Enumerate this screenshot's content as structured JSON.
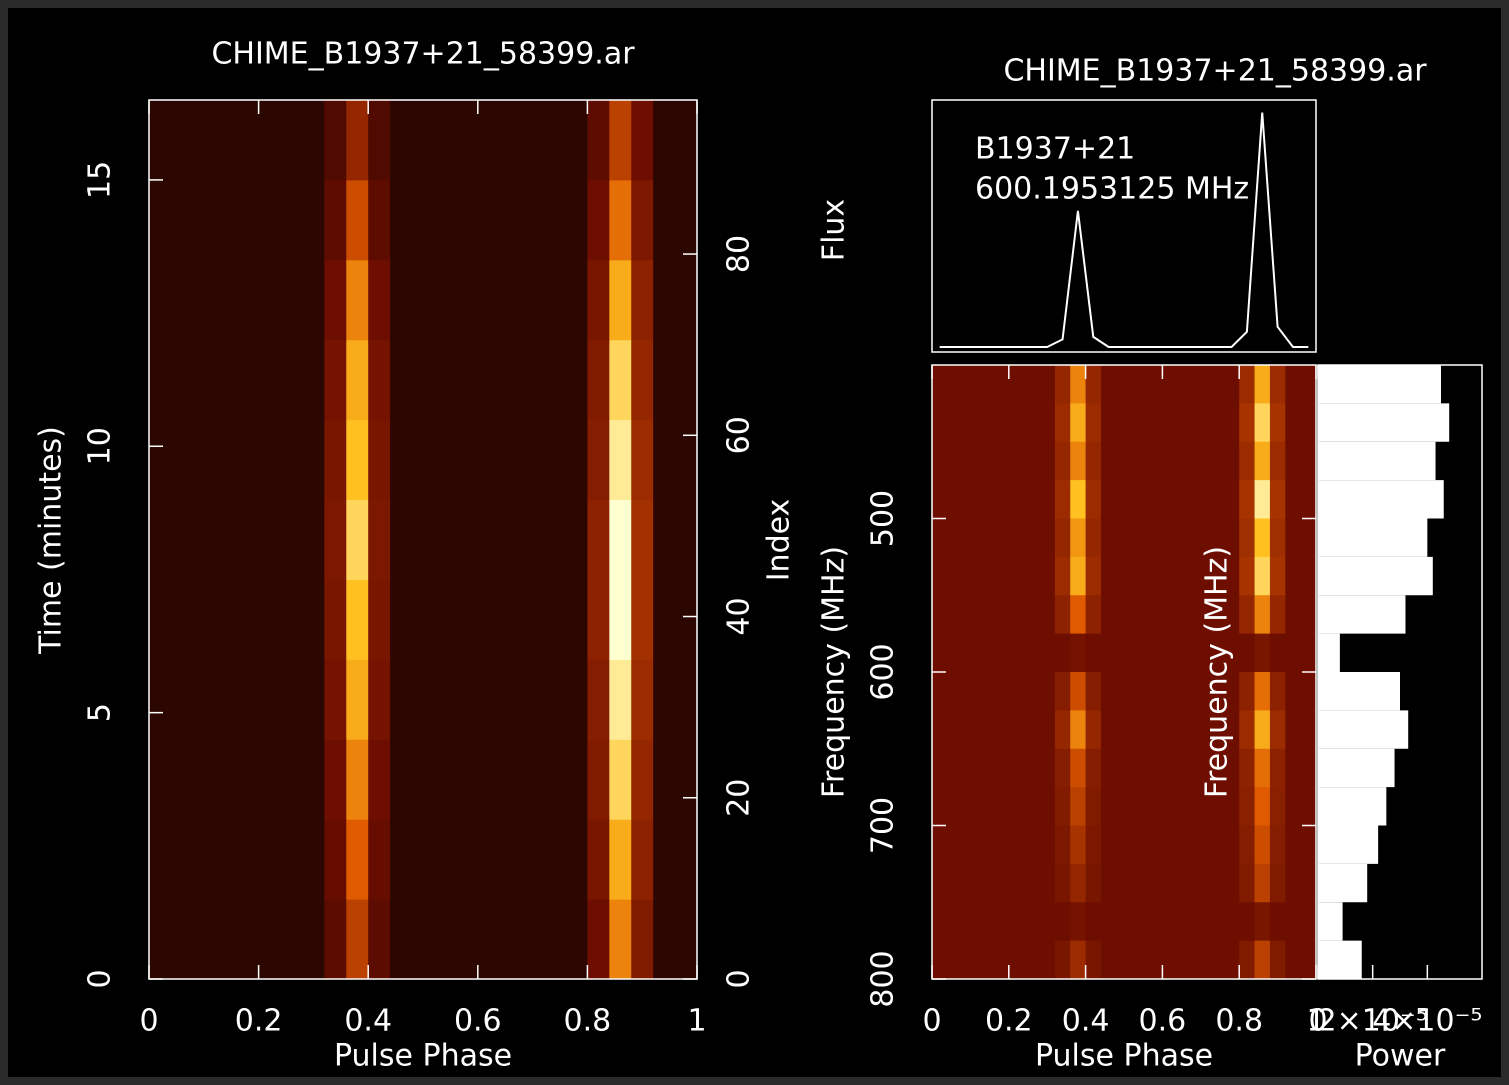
{
  "chart_data": [
    {
      "type": "heatmap",
      "title": "CHIME_B1937+21_58399.ar",
      "x_label": "Pulse Phase",
      "y_label": "Time (minutes)",
      "y2_label": "Index",
      "colormap": "heat",
      "xlim": [
        0,
        1
      ],
      "xticks": [
        0,
        0.2,
        0.4,
        0.6,
        0.8,
        1
      ],
      "ylim": [
        0,
        16.5
      ],
      "yticks": [
        0,
        5,
        10,
        15
      ],
      "y2lim": [
        0,
        97
      ],
      "y2ticks": [
        0,
        20,
        40,
        60,
        80
      ],
      "x": [
        0.02,
        0.06,
        0.1,
        0.14,
        0.18,
        0.22,
        0.26,
        0.3,
        0.34,
        0.38,
        0.42,
        0.46,
        0.5,
        0.54,
        0.58,
        0.62,
        0.66,
        0.7,
        0.74,
        0.78,
        0.82,
        0.86,
        0.9,
        0.94,
        0.98
      ],
      "y": [
        0.75,
        2.25,
        3.75,
        5.25,
        6.75,
        8.25,
        9.75,
        11.25,
        12.75,
        14.25,
        15.75
      ],
      "z": [
        [
          0.12,
          0.12,
          0.12,
          0.12,
          0.12,
          0.12,
          0.12,
          0.12,
          0.25,
          0.5,
          0.25,
          0.12,
          0.12,
          0.12,
          0.12,
          0.12,
          0.12,
          0.12,
          0.12,
          0.12,
          0.3,
          0.7,
          0.35,
          0.12,
          0.12
        ],
        [
          0.12,
          0.12,
          0.12,
          0.12,
          0.12,
          0.12,
          0.12,
          0.12,
          0.28,
          0.6,
          0.28,
          0.12,
          0.12,
          0.12,
          0.12,
          0.12,
          0.12,
          0.12,
          0.12,
          0.12,
          0.33,
          0.8,
          0.38,
          0.12,
          0.12
        ],
        [
          0.12,
          0.12,
          0.12,
          0.12,
          0.12,
          0.12,
          0.12,
          0.12,
          0.3,
          0.7,
          0.3,
          0.12,
          0.12,
          0.12,
          0.12,
          0.12,
          0.12,
          0.12,
          0.12,
          0.12,
          0.35,
          0.9,
          0.4,
          0.12,
          0.12
        ],
        [
          0.12,
          0.12,
          0.12,
          0.12,
          0.12,
          0.12,
          0.12,
          0.12,
          0.32,
          0.8,
          0.32,
          0.12,
          0.12,
          0.12,
          0.12,
          0.12,
          0.12,
          0.12,
          0.12,
          0.12,
          0.36,
          0.95,
          0.42,
          0.12,
          0.12
        ],
        [
          0.12,
          0.12,
          0.12,
          0.12,
          0.12,
          0.12,
          0.12,
          0.12,
          0.33,
          0.85,
          0.33,
          0.12,
          0.12,
          0.12,
          0.12,
          0.12,
          0.12,
          0.12,
          0.12,
          0.12,
          0.38,
          1,
          0.44,
          0.12,
          0.12
        ],
        [
          0.12,
          0.12,
          0.12,
          0.12,
          0.12,
          0.12,
          0.12,
          0.12,
          0.34,
          0.9,
          0.34,
          0.12,
          0.12,
          0.12,
          0.12,
          0.12,
          0.12,
          0.12,
          0.12,
          0.12,
          0.38,
          1,
          0.44,
          0.12,
          0.12
        ],
        [
          0.12,
          0.12,
          0.12,
          0.12,
          0.12,
          0.12,
          0.12,
          0.12,
          0.33,
          0.85,
          0.33,
          0.12,
          0.12,
          0.12,
          0.12,
          0.12,
          0.12,
          0.12,
          0.12,
          0.12,
          0.36,
          0.95,
          0.42,
          0.12,
          0.12
        ],
        [
          0.12,
          0.12,
          0.12,
          0.12,
          0.12,
          0.12,
          0.12,
          0.12,
          0.32,
          0.8,
          0.32,
          0.12,
          0.12,
          0.12,
          0.12,
          0.12,
          0.12,
          0.12,
          0.12,
          0.12,
          0.35,
          0.9,
          0.4,
          0.12,
          0.12
        ],
        [
          0.12,
          0.12,
          0.12,
          0.12,
          0.12,
          0.12,
          0.12,
          0.12,
          0.3,
          0.7,
          0.3,
          0.12,
          0.12,
          0.12,
          0.12,
          0.12,
          0.12,
          0.12,
          0.12,
          0.12,
          0.33,
          0.8,
          0.38,
          0.12,
          0.12
        ],
        [
          0.12,
          0.12,
          0.12,
          0.12,
          0.12,
          0.12,
          0.12,
          0.12,
          0.26,
          0.55,
          0.26,
          0.12,
          0.12,
          0.12,
          0.12,
          0.12,
          0.12,
          0.12,
          0.12,
          0.12,
          0.3,
          0.65,
          0.34,
          0.12,
          0.12
        ],
        [
          0.12,
          0.12,
          0.12,
          0.12,
          0.12,
          0.12,
          0.12,
          0.12,
          0.22,
          0.4,
          0.22,
          0.12,
          0.12,
          0.12,
          0.12,
          0.12,
          0.12,
          0.12,
          0.12,
          0.12,
          0.26,
          0.5,
          0.3,
          0.12,
          0.12
        ]
      ]
    },
    {
      "type": "line",
      "title": "CHIME_B1937+21_58399.ar",
      "y_label": "Flux",
      "annotations": [
        "B1937+21",
        "600.1953125 MHz"
      ],
      "color": "#ffffff",
      "xlim": [
        0,
        1
      ],
      "ylim": [
        0,
        1
      ],
      "x": [
        0.02,
        0.06,
        0.1,
        0.14,
        0.18,
        0.22,
        0.26,
        0.3,
        0.34,
        0.38,
        0.42,
        0.46,
        0.5,
        0.54,
        0.58,
        0.62,
        0.66,
        0.7,
        0.74,
        0.78,
        0.82,
        0.86,
        0.9,
        0.94,
        0.98
      ],
      "values": [
        0.02,
        0.02,
        0.02,
        0.02,
        0.02,
        0.02,
        0.02,
        0.02,
        0.05,
        0.56,
        0.06,
        0.02,
        0.02,
        0.02,
        0.02,
        0.02,
        0.02,
        0.02,
        0.02,
        0.02,
        0.08,
        0.95,
        0.1,
        0.02,
        0.02
      ]
    },
    {
      "type": "heatmap",
      "x_label": "Pulse Phase",
      "y_label": "Frequency (MHz)",
      "y2_label": "Frequency (MHz)",
      "colormap": "heat",
      "xlim": [
        0,
        1
      ],
      "xticks": [
        0,
        0.2,
        0.4,
        0.6,
        0.8,
        1
      ],
      "ylim": [
        800,
        400
      ],
      "yticks": [
        500,
        600,
        700,
        800
      ],
      "x": [
        0.02,
        0.06,
        0.1,
        0.14,
        0.18,
        0.22,
        0.26,
        0.3,
        0.34,
        0.38,
        0.42,
        0.46,
        0.5,
        0.54,
        0.58,
        0.62,
        0.66,
        0.7,
        0.74,
        0.78,
        0.82,
        0.86,
        0.9,
        0.94,
        0.98
      ],
      "y": [
        412.5,
        437.5,
        462.5,
        487.5,
        512.5,
        537.5,
        562.5,
        587.5,
        612.5,
        637.5,
        662.5,
        687.5,
        712.5,
        737.5,
        762.5,
        787.5
      ],
      "z": [
        [
          0.3,
          0.3,
          0.3,
          0.3,
          0.3,
          0.3,
          0.3,
          0.3,
          0.4,
          0.7,
          0.4,
          0.3,
          0.3,
          0.3,
          0.3,
          0.3,
          0.3,
          0.3,
          0.3,
          0.3,
          0.42,
          0.8,
          0.42,
          0.3,
          0.3
        ],
        [
          0.3,
          0.3,
          0.3,
          0.3,
          0.3,
          0.3,
          0.3,
          0.3,
          0.42,
          0.8,
          0.42,
          0.3,
          0.3,
          0.3,
          0.3,
          0.3,
          0.3,
          0.3,
          0.3,
          0.3,
          0.45,
          0.9,
          0.45,
          0.3,
          0.3
        ],
        [
          0.3,
          0.3,
          0.3,
          0.3,
          0.3,
          0.3,
          0.3,
          0.3,
          0.4,
          0.7,
          0.4,
          0.3,
          0.3,
          0.3,
          0.3,
          0.3,
          0.3,
          0.3,
          0.3,
          0.3,
          0.42,
          0.8,
          0.42,
          0.3,
          0.3
        ],
        [
          0.3,
          0.3,
          0.3,
          0.3,
          0.3,
          0.3,
          0.3,
          0.3,
          0.42,
          0.85,
          0.42,
          0.3,
          0.3,
          0.3,
          0.3,
          0.3,
          0.3,
          0.3,
          0.3,
          0.3,
          0.45,
          0.95,
          0.45,
          0.3,
          0.3
        ],
        [
          0.3,
          0.3,
          0.3,
          0.3,
          0.3,
          0.3,
          0.3,
          0.3,
          0.4,
          0.75,
          0.4,
          0.3,
          0.3,
          0.3,
          0.3,
          0.3,
          0.3,
          0.3,
          0.3,
          0.3,
          0.43,
          0.85,
          0.43,
          0.3,
          0.3
        ],
        [
          0.3,
          0.3,
          0.3,
          0.3,
          0.3,
          0.3,
          0.3,
          0.3,
          0.42,
          0.8,
          0.42,
          0.3,
          0.3,
          0.3,
          0.3,
          0.3,
          0.3,
          0.3,
          0.3,
          0.3,
          0.45,
          0.9,
          0.45,
          0.3,
          0.3
        ],
        [
          0.3,
          0.3,
          0.3,
          0.3,
          0.3,
          0.3,
          0.3,
          0.3,
          0.38,
          0.6,
          0.38,
          0.3,
          0.3,
          0.3,
          0.3,
          0.3,
          0.3,
          0.3,
          0.3,
          0.3,
          0.4,
          0.7,
          0.4,
          0.3,
          0.3
        ],
        [
          0.3,
          0.3,
          0.3,
          0.3,
          0.3,
          0.3,
          0.3,
          0.3,
          0.3,
          0.32,
          0.3,
          0.3,
          0.3,
          0.3,
          0.3,
          0.3,
          0.3,
          0.3,
          0.3,
          0.3,
          0.3,
          0.33,
          0.3,
          0.3,
          0.3
        ],
        [
          0.3,
          0.3,
          0.3,
          0.3,
          0.3,
          0.3,
          0.3,
          0.3,
          0.36,
          0.55,
          0.36,
          0.3,
          0.3,
          0.3,
          0.3,
          0.3,
          0.3,
          0.3,
          0.3,
          0.3,
          0.38,
          0.65,
          0.38,
          0.3,
          0.3
        ],
        [
          0.3,
          0.3,
          0.3,
          0.3,
          0.3,
          0.3,
          0.3,
          0.3,
          0.4,
          0.7,
          0.4,
          0.3,
          0.3,
          0.3,
          0.3,
          0.3,
          0.3,
          0.3,
          0.3,
          0.3,
          0.42,
          0.8,
          0.42,
          0.3,
          0.3
        ],
        [
          0.3,
          0.3,
          0.3,
          0.3,
          0.3,
          0.3,
          0.3,
          0.3,
          0.36,
          0.55,
          0.36,
          0.3,
          0.3,
          0.3,
          0.3,
          0.3,
          0.3,
          0.3,
          0.3,
          0.3,
          0.38,
          0.65,
          0.38,
          0.3,
          0.3
        ],
        [
          0.3,
          0.3,
          0.3,
          0.3,
          0.3,
          0.3,
          0.3,
          0.3,
          0.35,
          0.5,
          0.35,
          0.3,
          0.3,
          0.3,
          0.3,
          0.3,
          0.3,
          0.3,
          0.3,
          0.3,
          0.37,
          0.6,
          0.37,
          0.3,
          0.3
        ],
        [
          0.3,
          0.3,
          0.3,
          0.3,
          0.3,
          0.3,
          0.3,
          0.3,
          0.34,
          0.45,
          0.34,
          0.3,
          0.3,
          0.3,
          0.3,
          0.3,
          0.3,
          0.3,
          0.3,
          0.3,
          0.36,
          0.55,
          0.36,
          0.3,
          0.3
        ],
        [
          0.3,
          0.3,
          0.3,
          0.3,
          0.3,
          0.3,
          0.3,
          0.3,
          0.33,
          0.4,
          0.33,
          0.3,
          0.3,
          0.3,
          0.3,
          0.3,
          0.3,
          0.3,
          0.3,
          0.3,
          0.35,
          0.5,
          0.35,
          0.3,
          0.3
        ],
        [
          0.3,
          0.3,
          0.3,
          0.3,
          0.3,
          0.3,
          0.3,
          0.3,
          0.3,
          0.32,
          0.3,
          0.3,
          0.3,
          0.3,
          0.3,
          0.3,
          0.3,
          0.3,
          0.3,
          0.3,
          0.3,
          0.33,
          0.3,
          0.3,
          0.3
        ],
        [
          0.3,
          0.3,
          0.3,
          0.3,
          0.3,
          0.3,
          0.3,
          0.3,
          0.33,
          0.42,
          0.33,
          0.3,
          0.3,
          0.3,
          0.3,
          0.3,
          0.3,
          0.3,
          0.3,
          0.3,
          0.35,
          0.5,
          0.35,
          0.3,
          0.3
        ]
      ]
    },
    {
      "type": "barh",
      "x_label": "Power",
      "color": "#ffffff",
      "xlim": [
        0,
        6e-05
      ],
      "xticks": [
        0,
        {
          "value": 2e-05,
          "label": "2×10⁻⁵"
        },
        {
          "value": 4e-05,
          "label": "4×10⁻⁵"
        }
      ],
      "ylim": [
        800,
        400
      ],
      "y": [
        412.5,
        437.5,
        462.5,
        487.5,
        512.5,
        537.5,
        562.5,
        587.5,
        612.5,
        637.5,
        662.5,
        687.5,
        712.5,
        737.5,
        762.5,
        787.5
      ],
      "values": [
        4.5e-05,
        4.8e-05,
        4.3e-05,
        4.6e-05,
        4e-05,
        4.2e-05,
        3.2e-05,
        8e-06,
        3e-05,
        3.3e-05,
        2.8e-05,
        2.5e-05,
        2.2e-05,
        1.8e-05,
        9e-06,
        1.6e-05
      ]
    }
  ]
}
